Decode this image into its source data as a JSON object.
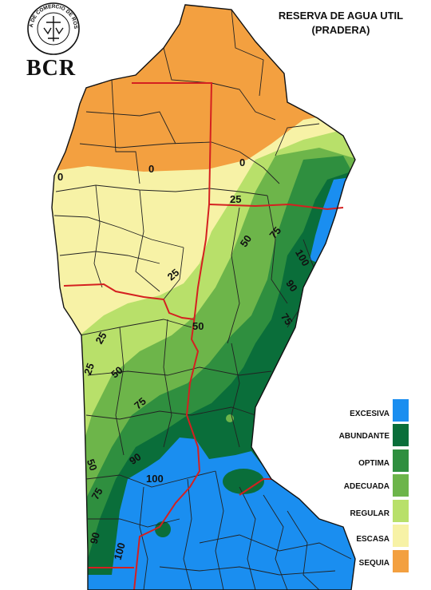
{
  "header": {
    "title_line1": "RESERVA DE AGUA UTIL",
    "title_line2": "(PRADERA)",
    "logo_text": "BCR",
    "seal_text": "BOLSA DE COMERCIO DE ROSARIO"
  },
  "legend": [
    {
      "label": "EXCESIVA",
      "color": "#1a8ef0"
    },
    {
      "label": "ABUNDANTE",
      "color": "#0a6e3a"
    },
    {
      "label": "OPTIMA",
      "color": "#2f8f3f"
    },
    {
      "label": "ADECUADA",
      "color": "#6db54a"
    },
    {
      "label": "REGULAR",
      "color": "#b8e06a"
    },
    {
      "label": "ESCASA",
      "color": "#f7f2a6"
    },
    {
      "label": "SEQUIA",
      "color": "#f3a040"
    }
  ],
  "isolines": [
    "0",
    "0",
    "0",
    "25",
    "25",
    "25",
    "25",
    "50",
    "50",
    "50",
    "50",
    "75",
    "75",
    "75",
    "75",
    "90",
    "90",
    "90",
    "100",
    "100",
    "100"
  ],
  "colors": {
    "border_red": "#d42020",
    "district_line": "#222222",
    "background": "#ffffff"
  }
}
